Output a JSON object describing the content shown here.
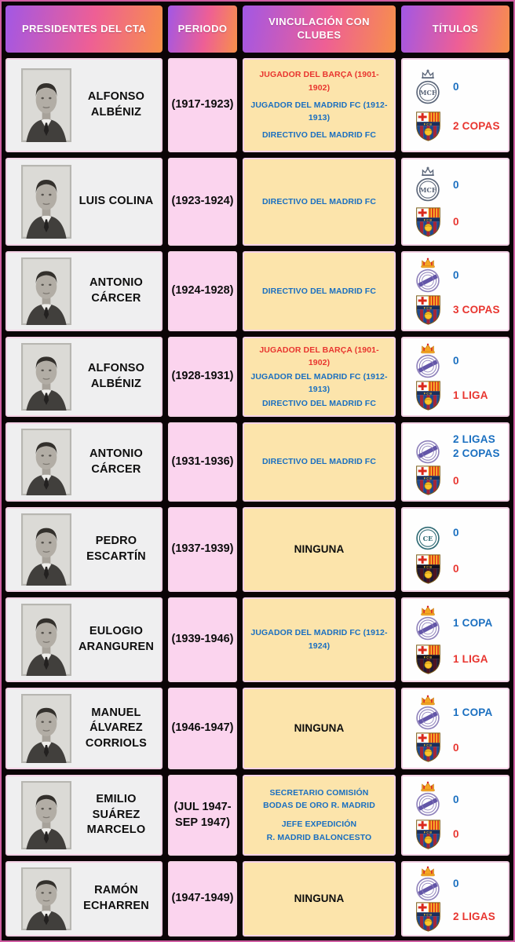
{
  "table": {
    "headers": [
      {
        "label": "PRESIDENTES DEL CTA"
      },
      {
        "label": "PERIODO"
      },
      {
        "label": "VINCULACIÓN CON CLUBES"
      },
      {
        "label": "TÍTULOS"
      }
    ],
    "rows": [
      {
        "name": "ALFONSO ALBÉNIZ",
        "period": "(1917-1923)",
        "links": [
          {
            "text": "JUGADOR DEL BARÇA (1901-1902)",
            "color": "red"
          },
          {
            "text": "JUGADOR DEL MADRID FC (1912-1913)",
            "color": "blue"
          },
          {
            "text": "DIRECTIVO DEL MADRID FC",
            "color": "blue"
          }
        ],
        "titles": {
          "real_madrid": {
            "value": "0",
            "logo": "rm-lineart-crown"
          },
          "barcelona": {
            "value": "2 COPAS",
            "logo": "fcb-classic"
          }
        }
      },
      {
        "name": "LUIS COLINA",
        "period": "(1923-1924)",
        "links": [
          {
            "text": "DIRECTIVO DEL MADRID FC",
            "color": "blue"
          }
        ],
        "titles": {
          "real_madrid": {
            "value": "0",
            "logo": "rm-lineart-crown"
          },
          "barcelona": {
            "value": "0",
            "logo": "fcb-classic"
          }
        }
      },
      {
        "name": "ANTONIO CÁRCER",
        "period": "(1924-1928)",
        "links": [
          {
            "text": "DIRECTIVO DEL MADRID FC",
            "color": "blue"
          }
        ],
        "titles": {
          "real_madrid": {
            "value": "0",
            "logo": "rm-crown"
          },
          "barcelona": {
            "value": "3 COPAS",
            "logo": "fcb-classic"
          }
        }
      },
      {
        "name": "ALFONSO ALBÉNIZ",
        "period": "(1928-1931)",
        "links": [
          {
            "text": "JUGADOR DEL BARÇA (1901-1902)",
            "color": "red"
          },
          {
            "text": "JUGADOR DEL MADRID FC (1912-1913)",
            "color": "blue"
          },
          {
            "text": "DIRECTIVO DEL MADRID FC",
            "color": "blue"
          }
        ],
        "titles": {
          "real_madrid": {
            "value": "0",
            "logo": "rm-crown"
          },
          "barcelona": {
            "value": "1 LIGA",
            "logo": "fcb-classic"
          }
        }
      },
      {
        "name": "ANTONIO CÁRCER",
        "period": "(1931-1936)",
        "links": [
          {
            "text": "DIRECTIVO DEL MADRID FC",
            "color": "blue"
          }
        ],
        "titles": {
          "real_madrid": {
            "value": "2 LIGAS\n2 COPAS",
            "logo": "rm-band"
          },
          "barcelona": {
            "value": "0",
            "logo": "fcb-classic"
          }
        }
      },
      {
        "name": "PEDRO ESCARTÍN",
        "period": "(1937-1939)",
        "links": [
          {
            "text": "NINGUNA",
            "color": "black"
          }
        ],
        "titles": {
          "real_madrid": {
            "value": "0",
            "logo": "rm-lineart"
          },
          "barcelona": {
            "value": "0",
            "logo": "fcb-dark"
          }
        }
      },
      {
        "name": "EULOGIO ARANGUREN",
        "period": "(1939-1946)",
        "links": [
          {
            "text": "JUGADOR DEL MADRID FC (1912-1924)",
            "color": "blue"
          }
        ],
        "titles": {
          "real_madrid": {
            "value": "1 COPA",
            "logo": "rm-crown"
          },
          "barcelona": {
            "value": "1 LIGA",
            "logo": "fcb-dark"
          }
        }
      },
      {
        "name": "MANUEL ÁLVAREZ CORRIOLS",
        "period": "(1946-1947)",
        "links": [
          {
            "text": "NINGUNA",
            "color": "black"
          }
        ],
        "titles": {
          "real_madrid": {
            "value": "1 COPA",
            "logo": "rm-crown"
          },
          "barcelona": {
            "value": "0",
            "logo": "fcb-classic"
          }
        }
      },
      {
        "name": "EMILIO SUÁREZ MARCELO",
        "period": "(JUL 1947-\nSEP 1947)",
        "links": [
          {
            "text": "SECRETARIO COMISIÓN\nBODAS DE ORO R. MADRID",
            "color": "blue"
          },
          {
            "text": "JEFE EXPEDICIÓN\nR. MADRID BALONCESTO",
            "color": "blue"
          }
        ],
        "titles": {
          "real_madrid": {
            "value": "0",
            "logo": "rm-crown"
          },
          "barcelona": {
            "value": "0",
            "logo": "fcb-classic"
          }
        }
      },
      {
        "name": "RAMÓN ECHARREN",
        "period": "(1947-1949)",
        "links": [
          {
            "text": "NINGUNA",
            "color": "black"
          }
        ],
        "titles": {
          "real_madrid": {
            "value": "0",
            "logo": "rm-crown"
          },
          "barcelona": {
            "value": "2 LIGAS",
            "logo": "fcb-classic"
          }
        }
      }
    ]
  },
  "clubs": {
    "real_madrid": "Real Madrid",
    "barcelona": "FC Barcelona"
  },
  "colors": {
    "header_gradient": [
      "#a257e5",
      "#ee5f95",
      "#f7904a"
    ],
    "rm_value_text": "#1a6fc0",
    "barca_value_text": "#e8352f",
    "link_blue": "#1a6fc0",
    "link_red": "#e8352f",
    "period_bg": "#fbd4ee",
    "links_bg": "#fce4ab",
    "name_bg": "#efeff0",
    "titles_bg": "#fefefe",
    "grid_bg": "#000000",
    "outer_border": "#cf5da2"
  },
  "chart_data": {
    "type": "table",
    "title": "PRESIDENTES DEL CTA",
    "columns": [
      "PRESIDENTES DEL CTA",
      "PERIODO",
      "VINCULACIÓN CON CLUBES",
      "TÍTULOS"
    ],
    "rows": [
      [
        "ALFONSO ALBÉNIZ",
        "(1917-1923)",
        "JUGADOR DEL BARÇA (1901-1902); JUGADOR DEL MADRID FC (1912-1913); DIRECTIVO DEL MADRID FC",
        "Real Madrid: 0; Barcelona: 2 COPAS"
      ],
      [
        "LUIS COLINA",
        "(1923-1924)",
        "DIRECTIVO DEL MADRID FC",
        "Real Madrid: 0; Barcelona: 0"
      ],
      [
        "ANTONIO CÁRCER",
        "(1924-1928)",
        "DIRECTIVO DEL MADRID FC",
        "Real Madrid: 0; Barcelona: 3 COPAS"
      ],
      [
        "ALFONSO ALBÉNIZ",
        "(1928-1931)",
        "JUGADOR DEL BARÇA (1901-1902); JUGADOR DEL MADRID FC (1912-1913); DIRECTIVO DEL MADRID FC",
        "Real Madrid: 0; Barcelona: 1 LIGA"
      ],
      [
        "ANTONIO CÁRCER",
        "(1931-1936)",
        "DIRECTIVO DEL MADRID FC",
        "Real Madrid: 2 LIGAS 2 COPAS; Barcelona: 0"
      ],
      [
        "PEDRO ESCARTÍN",
        "(1937-1939)",
        "NINGUNA",
        "Real Madrid: 0; Barcelona: 0"
      ],
      [
        "EULOGIO ARANGUREN",
        "(1939-1946)",
        "JUGADOR DEL MADRID FC (1912-1924)",
        "Real Madrid: 1 COPA; Barcelona: 1 LIGA"
      ],
      [
        "MANUEL ÁLVAREZ CORRIOLS",
        "(1946-1947)",
        "NINGUNA",
        "Real Madrid: 1 COPA; Barcelona: 0"
      ],
      [
        "EMILIO SUÁREZ MARCELO",
        "(JUL 1947- SEP 1947)",
        "SECRETARIO COMISIÓN BODAS DE ORO R. MADRID; JEFE EXPEDICIÓN R. MADRID BALONCESTO",
        "Real Madrid: 0; Barcelona: 0"
      ],
      [
        "RAMÓN ECHARREN",
        "(1947-1949)",
        "NINGUNA",
        "Real Madrid: 0; Barcelona: 2 LIGAS"
      ]
    ]
  }
}
